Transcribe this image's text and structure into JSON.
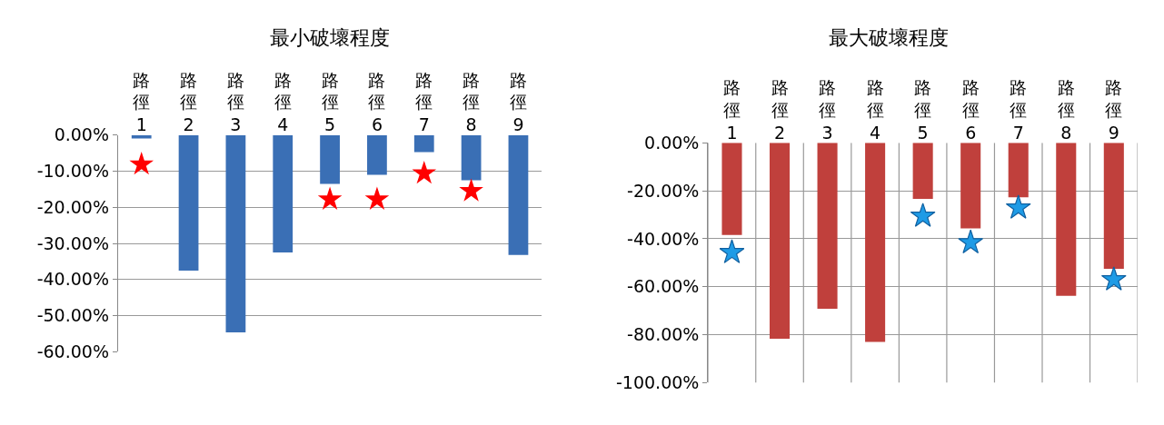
{
  "chart_data": [
    {
      "type": "bar",
      "title": "最小破壞程度",
      "categories": [
        "路徑1",
        "路徑2",
        "路徑3",
        "路徑4",
        "路徑5",
        "路徑6",
        "路徑7",
        "路徑8",
        "路徑9"
      ],
      "series": [
        {
          "color": "#3a6fb5",
          "values": [
            -0.9,
            -37.5,
            -54.6,
            -32.5,
            -13.5,
            -11.0,
            -4.7,
            -12.5,
            -33.2
          ]
        },
        {
          "type": "scatter",
          "color": "#ff0000",
          "marker": "star",
          "values": [
            -8.1,
            null,
            null,
            null,
            -17.8,
            -17.8,
            -10.6,
            -15.5,
            null
          ]
        }
      ],
      "ylim": [
        -60,
        0
      ],
      "yticks": [
        {
          "value": 0,
          "label": "0.00%"
        },
        {
          "value": -10,
          "label": "-10.00%"
        },
        {
          "value": -20,
          "label": "-20.00%"
        },
        {
          "value": -30,
          "label": "-30.00%"
        },
        {
          "value": -40,
          "label": "-40.00%"
        },
        {
          "value": -50,
          "label": "-50.00%"
        },
        {
          "value": -60,
          "label": "-60.00%"
        }
      ],
      "grid": "y"
    },
    {
      "type": "bar",
      "title": "最大破壞程度",
      "categories": [
        "路徑1",
        "路徑2",
        "路徑3",
        "路徑4",
        "路徑5",
        "路徑6",
        "路徑7",
        "路徑8",
        "路徑9"
      ],
      "series": [
        {
          "color": "#c0403c",
          "values": [
            -38.4,
            -81.7,
            -69.2,
            -83.0,
            -23.4,
            -35.7,
            -22.7,
            -63.8,
            -52.5
          ]
        },
        {
          "type": "scatter",
          "color": "#1e9be6",
          "marker": "star",
          "values": [
            -45.7,
            null,
            null,
            null,
            -30.5,
            -41.6,
            -27.1,
            null,
            -57.0
          ]
        }
      ],
      "ylim": [
        -100,
        0
      ],
      "yticks": [
        {
          "value": 0,
          "label": "0.00%"
        },
        {
          "value": -20,
          "label": "-20.00%"
        },
        {
          "value": -40,
          "label": "-40.00%"
        },
        {
          "value": -60,
          "label": "-60.00%"
        },
        {
          "value": -80,
          "label": "-80.00%"
        },
        {
          "value": -100,
          "label": "-100.00%"
        }
      ],
      "grid": true
    }
  ]
}
